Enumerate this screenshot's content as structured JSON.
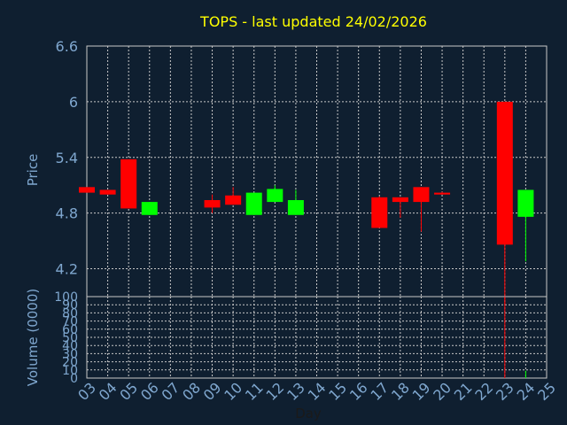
{
  "chart_data": [
    {
      "type": "candlestick",
      "title": "TOPS - last updated 24/02/2026",
      "xlabel": "",
      "ylabel": "Price",
      "ylim": [
        3.9,
        6.6
      ],
      "yticks": [
        "6.6",
        "6",
        "5.4",
        "4.8",
        "4.2"
      ],
      "ytick_values": [
        6.6,
        6.0,
        5.4,
        4.8,
        4.2
      ],
      "x_tick_labels": [
        "03",
        "04",
        "05",
        "06",
        "07",
        "08",
        "09",
        "10",
        "11",
        "12",
        "13",
        "14",
        "15",
        "16",
        "17",
        "18",
        "19",
        "20",
        "21",
        "22",
        "23",
        "24",
        "25"
      ],
      "grid": true,
      "up_color": "#00ff00",
      "down_color": "#ff0000",
      "candles": [
        {
          "day": "03",
          "open": 5.08,
          "close": 5.02,
          "high": 5.08,
          "low": 5.02
        },
        {
          "day": "04",
          "open": 5.05,
          "close": 5.0,
          "high": 5.05,
          "low": 5.0
        },
        {
          "day": "05",
          "open": 5.38,
          "close": 4.85,
          "high": 5.38,
          "low": 4.85
        },
        {
          "day": "06",
          "open": 4.78,
          "close": 4.92,
          "high": 4.92,
          "low": 4.78
        },
        {
          "day": "09",
          "open": 4.94,
          "close": 4.86,
          "high": 5.0,
          "low": 4.8
        },
        {
          "day": "10",
          "open": 4.99,
          "close": 4.89,
          "high": 5.08,
          "low": 4.89
        },
        {
          "day": "11",
          "open": 4.78,
          "close": 5.02,
          "high": 5.02,
          "low": 4.78
        },
        {
          "day": "12",
          "open": 4.92,
          "close": 5.06,
          "high": 5.1,
          "low": 4.92
        },
        {
          "day": "13",
          "open": 4.78,
          "close": 4.94,
          "high": 5.05,
          "low": 4.78
        },
        {
          "day": "17",
          "open": 4.97,
          "close": 4.64,
          "high": 4.98,
          "low": 4.64
        },
        {
          "day": "18",
          "open": 4.97,
          "close": 4.92,
          "high": 4.97,
          "low": 4.75
        },
        {
          "day": "19",
          "open": 5.08,
          "close": 4.92,
          "high": 5.08,
          "low": 4.6
        },
        {
          "day": "20",
          "open": 5.02,
          "close": 5.0,
          "high": 5.03,
          "low": 5.0
        },
        {
          "day": "23",
          "open": 6.0,
          "close": 4.46,
          "high": 6.0,
          "low": 3.82
        },
        {
          "day": "24",
          "open": 4.76,
          "close": 5.05,
          "high": 5.05,
          "low": 4.28
        }
      ]
    },
    {
      "type": "bar",
      "title": "",
      "xlabel": "Day",
      "ylabel": "Volume (0000)",
      "ylim": [
        0,
        100
      ],
      "yticks": [
        "100",
        "90",
        "80",
        "70",
        "60",
        "50",
        "40",
        "30",
        "20",
        "10",
        "0"
      ],
      "ytick_values": [
        100,
        90,
        80,
        70,
        60,
        50,
        40,
        30,
        20,
        10,
        0
      ],
      "grid": true,
      "bars": [
        {
          "day": "23",
          "value": 100,
          "color": "#ff0000"
        },
        {
          "day": "24",
          "value": 9,
          "color": "#00ff00"
        }
      ]
    }
  ]
}
